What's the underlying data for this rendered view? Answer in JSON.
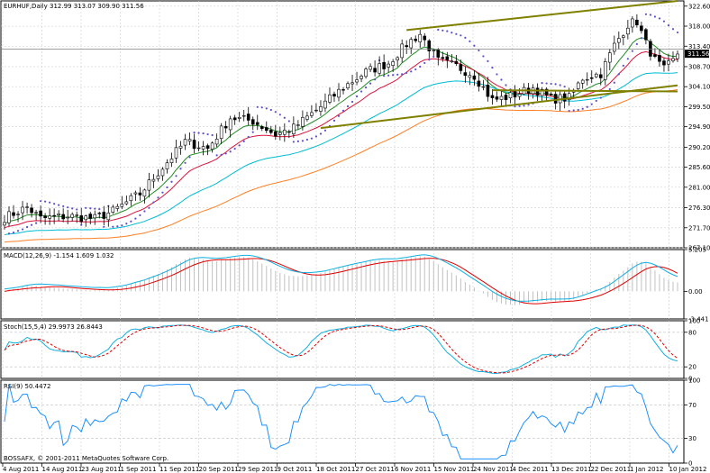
{
  "chart_data": [
    {
      "type": "candlestick",
      "title": "EURHUF,Daily",
      "ohlc_text": "312.99 313.07 309.90 311.56",
      "current_price": 311.56,
      "ylim": [
        267.1,
        323.8
      ],
      "y_ticks": [
        322.6,
        318.0,
        313.4,
        308.7,
        304.1,
        299.5,
        294.9,
        290.2,
        285.6,
        281.0,
        276.3,
        271.7,
        267.1
      ],
      "y_tick_labels": [
        "322.60",
        "318.00",
        "313.40",
        "308.70",
        "304.10",
        "299.50",
        "294.90",
        "290.20",
        "285.60",
        "281.00",
        "276.30",
        "271.70",
        "267.10"
      ],
      "x_labels": [
        "4 Aug 2011",
        "14 Aug 2011",
        "23 Aug 2011",
        "1 Sep 2011",
        "11 Sep 2011",
        "20 Sep 2011",
        "29 Sep 2011",
        "9 Oct 2011",
        "18 Oct 2011",
        "27 Oct 2011",
        "6 Nov 2011",
        "15 Nov 2011",
        "24 Nov 2011",
        "4 Dec 2011",
        "13 Dec 2011",
        "22 Dec 2011",
        "1 Jan 2012",
        "10 Jan 2012"
      ],
      "anchors": [
        {
          "i": 0,
          "c": 274.0
        },
        {
          "i": 5,
          "c": 276.4
        },
        {
          "i": 8,
          "c": 273.8
        },
        {
          "i": 14,
          "c": 274.4
        },
        {
          "i": 20,
          "c": 273.8
        },
        {
          "i": 24,
          "c": 275.5
        },
        {
          "i": 30,
          "c": 279.5
        },
        {
          "i": 34,
          "c": 284.4
        },
        {
          "i": 40,
          "c": 291.5
        },
        {
          "i": 45,
          "c": 289.9
        },
        {
          "i": 50,
          "c": 297.0
        },
        {
          "i": 55,
          "c": 296.2
        },
        {
          "i": 60,
          "c": 293.1
        },
        {
          "i": 64,
          "c": 294.6
        },
        {
          "i": 70,
          "c": 299.5
        },
        {
          "i": 75,
          "c": 303.9
        },
        {
          "i": 80,
          "c": 307.5
        },
        {
          "i": 85,
          "c": 309.5
        },
        {
          "i": 89,
          "c": 313.9
        },
        {
          "i": 92,
          "c": 316.2
        },
        {
          "i": 96,
          "c": 310.0
        },
        {
          "i": 100,
          "c": 308.8
        },
        {
          "i": 104,
          "c": 306.7
        },
        {
          "i": 108,
          "c": 301.0
        },
        {
          "i": 112,
          "c": 301.9
        },
        {
          "i": 117,
          "c": 303.8
        },
        {
          "i": 121,
          "c": 301.3
        },
        {
          "i": 125,
          "c": 301.5
        },
        {
          "i": 128,
          "c": 306.1
        },
        {
          "i": 132,
          "c": 307.1
        },
        {
          "i": 135,
          "c": 313.6
        },
        {
          "i": 138,
          "c": 318.4
        },
        {
          "i": 140,
          "c": 319.1
        },
        {
          "i": 142,
          "c": 314.0
        },
        {
          "i": 144,
          "c": 310.2
        },
        {
          "i": 146,
          "c": 308.0
        },
        {
          "i": 148,
          "c": 310.0
        },
        {
          "i": 149,
          "c": 311.6
        }
      ],
      "trendlines": [
        {
          "name": "channel-upper",
          "color": "#808000",
          "x": [
            89,
            149
          ],
          "y": [
            317.1,
            323.8
          ]
        },
        {
          "name": "channel-lower",
          "color": "#808000",
          "x": [
            70,
            149
          ],
          "y": [
            294.6,
            304.4
          ]
        },
        {
          "name": "support-a",
          "color": "#808000",
          "x": [
            108,
            149
          ],
          "y": [
            303.3,
            303.0
          ]
        }
      ],
      "price_line": 312.7
    },
    {
      "type": "line",
      "title": "MACD(12,26,9) -1.154 1.609 1.032",
      "ylim": [
        -3.441,
        5.205
      ],
      "y_tick_labels": [
        "5.205",
        "0.00",
        "-3.441"
      ],
      "series": [
        {
          "name": "MACD",
          "color": "#c0c0c0",
          "kind": "histogram"
        },
        {
          "name": "Signal",
          "color": "#e00000"
        },
        {
          "name": "Main",
          "color": "#10b0e0"
        }
      ]
    },
    {
      "type": "line",
      "title": "Stoch(15,5,4) 29.9973 26.8443",
      "ylim": [
        0,
        100
      ],
      "y_tick_labels": [
        "100",
        "80",
        "20",
        "0"
      ],
      "levels": [
        80,
        20
      ],
      "series": [
        {
          "name": "Main",
          "color": "#10b0e0"
        },
        {
          "name": "Signal",
          "color": "#e00000",
          "dashed": true
        }
      ]
    },
    {
      "type": "line",
      "title": "RSI(9) 50.4472",
      "ylim": [
        0,
        100
      ],
      "y_tick_labels": [
        "100",
        "70",
        "30",
        "0"
      ],
      "levels": [
        70,
        30
      ],
      "series": [
        {
          "name": "RSI",
          "color": "#1e90ff"
        }
      ]
    }
  ],
  "footer": {
    "copyright": "BOSSAFX, © 2001-2011 MetaQuotes Software Corp."
  },
  "colors": {
    "ma_fast": "#228b22",
    "ma_mid": "#dc143c",
    "ma_slow": "#00bcd4",
    "ma_slowest": "#ff7f24",
    "psar": "#5a4fcf",
    "bull": "#ffffff",
    "bear": "#000000"
  }
}
